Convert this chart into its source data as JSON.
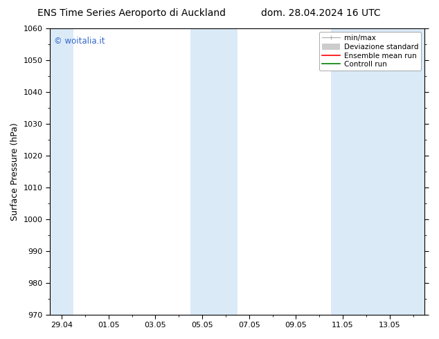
{
  "title_left": "ENS Time Series Aeroporto di Auckland",
  "title_right": "dom. 28.04.2024 16 UTC",
  "ylabel": "Surface Pressure (hPa)",
  "ylim": [
    970,
    1060
  ],
  "yticks": [
    970,
    980,
    990,
    1000,
    1010,
    1020,
    1030,
    1040,
    1050,
    1060
  ],
  "xlabel_dates": [
    "29.04",
    "01.05",
    "03.05",
    "05.05",
    "07.05",
    "09.05",
    "11.05",
    "13.05"
  ],
  "x_tick_positions": [
    0,
    2,
    4,
    6,
    8,
    10,
    12,
    14
  ],
  "xlim": [
    -0.5,
    15.5
  ],
  "shade_bands": [
    {
      "x_start": -0.5,
      "x_end": 0.5
    },
    {
      "x_start": 5.5,
      "x_end": 7.5
    },
    {
      "x_start": 11.5,
      "x_end": 15.5
    }
  ],
  "shade_color": "#dbeaf7",
  "bg_color": "#ffffff",
  "watermark": "© woitalia.it",
  "watermark_color": "#3366cc",
  "title_fontsize": 10,
  "ylabel_fontsize": 9,
  "tick_fontsize": 8,
  "legend_fontsize": 7.5,
  "minmax_color": "#aaaaaa",
  "devstd_color": "#cccccc",
  "ensemble_color": "#ff0000",
  "control_color": "#008000"
}
